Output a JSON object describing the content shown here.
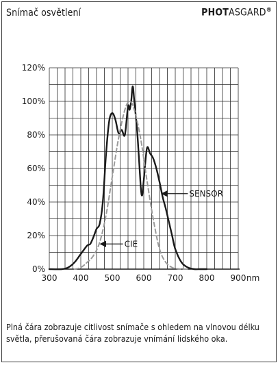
{
  "header": {
    "title": "Snímač osvětlení",
    "brand_bold": "PHOT",
    "brand_regular": "ASGARD",
    "brand_mark": "®"
  },
  "description": "Plná čára zobrazuje citlivost snímače s ohledem na vlnovou délku světla, přerušovaná čára zobrazuje vnímání lidského oka.",
  "chart_data": {
    "type": "line",
    "title": "",
    "xlabel": "nm",
    "ylabel": "",
    "xlim": [
      300,
      900
    ],
    "ylim": [
      0,
      120
    ],
    "x_ticks": [
      "300",
      "400",
      "500",
      "600",
      "700",
      "800",
      "900"
    ],
    "y_ticks": [
      "0%",
      "20%",
      "40%",
      "60%",
      "80%",
      "100%",
      "120%"
    ],
    "grid": true,
    "series": [
      {
        "name": "SENSOR",
        "style": "solid",
        "color": "#1a1a1a",
        "x": [
          300,
          340,
          360,
          380,
          400,
          420,
          430,
          440,
          450,
          460,
          470,
          480,
          490,
          500,
          510,
          520,
          530,
          540,
          550,
          555,
          560,
          565,
          570,
          580,
          590,
          595,
          600,
          610,
          620,
          630,
          640,
          650,
          660,
          670,
          680,
          690,
          700,
          720,
          740,
          760,
          780,
          800
        ],
        "y": [
          0,
          0,
          1,
          4,
          9,
          14,
          15,
          19,
          24,
          27,
          40,
          68,
          88,
          93,
          89,
          81,
          83,
          80,
          97,
          95,
          100,
          109,
          100,
          80,
          50,
          44,
          53,
          72,
          69,
          66,
          60,
          52,
          43,
          36,
          28,
          20,
          12,
          4,
          1,
          0,
          0,
          0
        ]
      },
      {
        "name": "CIE",
        "style": "dashed",
        "color": "#9a9a9a",
        "x": [
          380,
          400,
          420,
          440,
          460,
          480,
          500,
          520,
          540,
          555,
          570,
          590,
          610,
          630,
          650,
          670,
          690,
          700,
          720,
          740
        ],
        "y": [
          0,
          1,
          4,
          8,
          16,
          32,
          55,
          78,
          95,
          100,
          95,
          78,
          53,
          30,
          12,
          4,
          1,
          0.5,
          0,
          0
        ]
      }
    ],
    "annotations": [
      {
        "text": "SENSOR",
        "series": "SENSOR",
        "at_x": 653,
        "at_y": 45
      },
      {
        "text": "CIE",
        "series": "CIE",
        "at_x": 458,
        "at_y": 15
      }
    ]
  }
}
